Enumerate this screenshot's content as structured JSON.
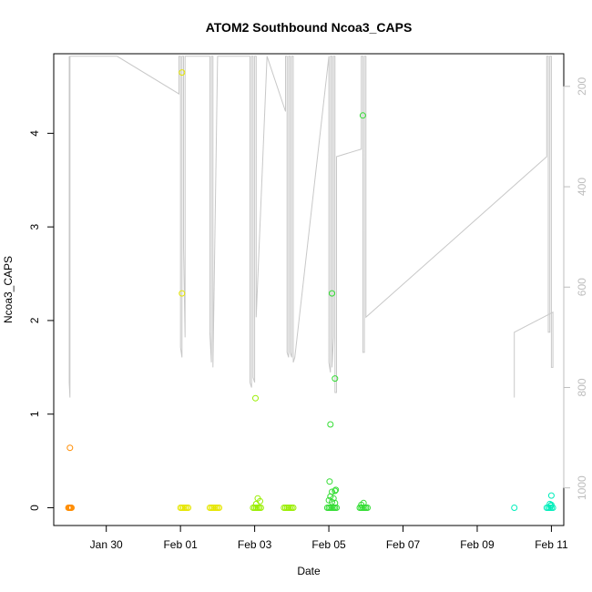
{
  "chart_data": {
    "type": "scatter",
    "title": "ATOM2 Southbound Ncoa3_CAPS",
    "xlabel": "Date",
    "ylabel": "Ncoa3_CAPS",
    "x_axis": {
      "type": "date",
      "domain": [
        "2025-01-28T14:00",
        "2025-02-11T08:00"
      ],
      "ticks": [
        {
          "value": "2025-01-30",
          "label": "Jan 30"
        },
        {
          "value": "2025-02-01",
          "label": "Feb 01"
        },
        {
          "value": "2025-02-03",
          "label": "Feb 03"
        },
        {
          "value": "2025-02-05",
          "label": "Feb 05"
        },
        {
          "value": "2025-02-07",
          "label": "Feb 07"
        },
        {
          "value": "2025-02-09",
          "label": "Feb 09"
        },
        {
          "value": "2025-02-11",
          "label": "Feb 11"
        }
      ]
    },
    "y_axis": {
      "range": [
        -0.19,
        4.85
      ],
      "ticks": [
        0,
        1,
        2,
        3,
        4
      ]
    },
    "y2_axis": {
      "range": [
        1075,
        135
      ],
      "reversed": true,
      "ticks": [
        200,
        400,
        600,
        800,
        1000
      ],
      "color": "#bdbdbd"
    },
    "grid": false,
    "legend": "none",
    "series": [
      {
        "color": "#ff8c00",
        "points": [
          {
            "x": "2025-01-29T00:30",
            "y": 0.64
          },
          {
            "x": "2025-01-28T23:30",
            "y": 0
          },
          {
            "x": "2025-01-29T00:00",
            "y": 0
          },
          {
            "x": "2025-01-29T00:30",
            "y": 0
          },
          {
            "x": "2025-01-29T01:00",
            "y": 0
          },
          {
            "x": "2025-01-29T01:30",
            "y": 0
          }
        ]
      },
      {
        "color": "#e6e600",
        "points": [
          {
            "x": "2025-02-01T01:00",
            "y": 4.65
          },
          {
            "x": "2025-02-01T01:00",
            "y": 2.29
          },
          {
            "x": "2025-02-01T00:00",
            "y": 0
          },
          {
            "x": "2025-02-01T01:00",
            "y": 0
          },
          {
            "x": "2025-02-01T02:00",
            "y": 0
          },
          {
            "x": "2025-02-01T03:00",
            "y": 0
          },
          {
            "x": "2025-02-01T04:00",
            "y": 0
          },
          {
            "x": "2025-02-01T05:00",
            "y": 0
          },
          {
            "x": "2025-02-01T19:00",
            "y": 0
          },
          {
            "x": "2025-02-01T20:00",
            "y": 0
          },
          {
            "x": "2025-02-01T21:00",
            "y": 0
          },
          {
            "x": "2025-02-01T22:00",
            "y": 0
          },
          {
            "x": "2025-02-01T23:00",
            "y": 0
          },
          {
            "x": "2025-02-02T00:00",
            "y": 0
          },
          {
            "x": "2025-02-02T01:00",
            "y": 0
          }
        ]
      },
      {
        "color": "#99ee00",
        "points": [
          {
            "x": "2025-02-03T00:30",
            "y": 1.17
          },
          {
            "x": "2025-02-03T02:00",
            "y": 0.1
          },
          {
            "x": "2025-02-03T03:30",
            "y": 0.07
          },
          {
            "x": "2025-02-03T01:00",
            "y": 0.04
          },
          {
            "x": "2025-02-02T23:00",
            "y": 0
          },
          {
            "x": "2025-02-03T00:00",
            "y": 0
          },
          {
            "x": "2025-02-03T01:00",
            "y": 0
          },
          {
            "x": "2025-02-03T02:00",
            "y": 0
          },
          {
            "x": "2025-02-03T03:00",
            "y": 0
          },
          {
            "x": "2025-02-03T04:00",
            "y": 0
          },
          {
            "x": "2025-02-03T19:00",
            "y": 0
          },
          {
            "x": "2025-02-03T20:00",
            "y": 0
          },
          {
            "x": "2025-02-03T21:00",
            "y": 0
          },
          {
            "x": "2025-02-03T22:00",
            "y": 0
          },
          {
            "x": "2025-02-03T23:00",
            "y": 0
          },
          {
            "x": "2025-02-04T00:00",
            "y": 0
          },
          {
            "x": "2025-02-04T01:00",
            "y": 0
          }
        ]
      },
      {
        "color": "#33dd33",
        "points": [
          {
            "x": "2025-02-05T22:00",
            "y": 4.19
          },
          {
            "x": "2025-02-05T02:00",
            "y": 2.29
          },
          {
            "x": "2025-02-05T04:00",
            "y": 1.38
          },
          {
            "x": "2025-02-05T01:00",
            "y": 0.89
          },
          {
            "x": "2025-02-05T00:30",
            "y": 0.28
          },
          {
            "x": "2025-02-05T02:00",
            "y": 0.17
          },
          {
            "x": "2025-02-05T04:00",
            "y": 0.18
          },
          {
            "x": "2025-02-05T04:30",
            "y": 0.19
          },
          {
            "x": "2025-02-05T01:00",
            "y": 0.12
          },
          {
            "x": "2025-02-05T03:00",
            "y": 0.1
          },
          {
            "x": "2025-02-05T00:00",
            "y": 0.08
          },
          {
            "x": "2025-02-05T02:00",
            "y": 0.06
          },
          {
            "x": "2025-02-05T04:00",
            "y": 0.05
          },
          {
            "x": "2025-02-05T22:30",
            "y": 0.05
          },
          {
            "x": "2025-02-05T21:00",
            "y": 0.03
          },
          {
            "x": "2025-02-04T23:00",
            "y": 0
          },
          {
            "x": "2025-02-05T00:00",
            "y": 0
          },
          {
            "x": "2025-02-05T01:00",
            "y": 0
          },
          {
            "x": "2025-02-05T02:00",
            "y": 0
          },
          {
            "x": "2025-02-05T03:00",
            "y": 0
          },
          {
            "x": "2025-02-05T04:00",
            "y": 0
          },
          {
            "x": "2025-02-05T05:00",
            "y": 0
          },
          {
            "x": "2025-02-05T20:00",
            "y": 0
          },
          {
            "x": "2025-02-05T21:00",
            "y": 0
          },
          {
            "x": "2025-02-05T22:00",
            "y": 0
          },
          {
            "x": "2025-02-05T23:00",
            "y": 0
          },
          {
            "x": "2025-02-06T00:00",
            "y": 0
          },
          {
            "x": "2025-02-06T01:00",
            "y": 0
          }
        ]
      },
      {
        "color": "#00eebb",
        "points": [
          {
            "x": "2025-02-11T00:00",
            "y": 0.13
          },
          {
            "x": "2025-02-10T23:00",
            "y": 0.04
          },
          {
            "x": "2025-02-11T00:00",
            "y": 0.03
          },
          {
            "x": "2025-02-10T23:30",
            "y": 0.02
          },
          {
            "x": "2025-02-10T00:00",
            "y": 0
          },
          {
            "x": "2025-02-10T21:00",
            "y": 0
          },
          {
            "x": "2025-02-10T22:00",
            "y": 0
          },
          {
            "x": "2025-02-10T23:00",
            "y": 0
          },
          {
            "x": "2025-02-11T00:00",
            "y": 0
          },
          {
            "x": "2025-02-11T01:00",
            "y": 0
          }
        ]
      }
    ],
    "trace": {
      "color": "#c8c8c8",
      "axis": "y2",
      "points": [
        {
          "x": "2025-01-29T00:00",
          "y": 140
        },
        {
          "x": "2025-01-29T00:00",
          "y": 790
        },
        {
          "x": "2025-01-29T00:30",
          "y": 820
        },
        {
          "x": "2025-01-29T00:30",
          "y": 140
        },
        {
          "x": "2025-01-29T03:00",
          "y": 140
        },
        {
          "x": "2025-01-30T07:00",
          "y": 140
        },
        {
          "x": "2025-01-31T23:00",
          "y": 215
        },
        {
          "x": "2025-01-31T23:00",
          "y": 140
        },
        {
          "x": "2025-02-01T00:00",
          "y": 140
        },
        {
          "x": "2025-02-01T00:00",
          "y": 720
        },
        {
          "x": "2025-02-01T01:00",
          "y": 740
        },
        {
          "x": "2025-02-01T01:00",
          "y": 140
        },
        {
          "x": "2025-02-01T02:00",
          "y": 140
        },
        {
          "x": "2025-02-01T02:00",
          "y": 520
        },
        {
          "x": "2025-02-01T03:00",
          "y": 700
        },
        {
          "x": "2025-02-01T03:00",
          "y": 140
        },
        {
          "x": "2025-02-01T19:00",
          "y": 140
        },
        {
          "x": "2025-02-01T19:00",
          "y": 690
        },
        {
          "x": "2025-02-01T20:00",
          "y": 750
        },
        {
          "x": "2025-02-01T20:00",
          "y": 140
        },
        {
          "x": "2025-02-01T21:00",
          "y": 140
        },
        {
          "x": "2025-02-01T21:00",
          "y": 760
        },
        {
          "x": "2025-02-02T00:00",
          "y": 140
        },
        {
          "x": "2025-02-02T19:00",
          "y": 140
        },
        {
          "x": "2025-02-02T21:00",
          "y": 140
        },
        {
          "x": "2025-02-02T21:00",
          "y": 790
        },
        {
          "x": "2025-02-02T22:00",
          "y": 800
        },
        {
          "x": "2025-02-02T22:00",
          "y": 140
        },
        {
          "x": "2025-02-02T23:00",
          "y": 140
        },
        {
          "x": "2025-02-02T23:00",
          "y": 780
        },
        {
          "x": "2025-02-03T00:00",
          "y": 790
        },
        {
          "x": "2025-02-03T00:00",
          "y": 140
        },
        {
          "x": "2025-02-03T01:00",
          "y": 140
        },
        {
          "x": "2025-02-03T01:00",
          "y": 660
        },
        {
          "x": "2025-02-03T08:00",
          "y": 140
        },
        {
          "x": "2025-02-03T20:00",
          "y": 250
        },
        {
          "x": "2025-02-03T20:00",
          "y": 140
        },
        {
          "x": "2025-02-03T21:00",
          "y": 140
        },
        {
          "x": "2025-02-03T21:00",
          "y": 730
        },
        {
          "x": "2025-02-03T22:00",
          "y": 740
        },
        {
          "x": "2025-02-03T22:00",
          "y": 140
        },
        {
          "x": "2025-02-03T23:00",
          "y": 140
        },
        {
          "x": "2025-02-03T23:00",
          "y": 730
        },
        {
          "x": "2025-02-04T00:00",
          "y": 740
        },
        {
          "x": "2025-02-04T00:00",
          "y": 140
        },
        {
          "x": "2025-02-04T01:00",
          "y": 140
        },
        {
          "x": "2025-02-04T01:00",
          "y": 750
        },
        {
          "x": "2025-02-04T02:00",
          "y": 740
        },
        {
          "x": "2025-02-05T00:00",
          "y": 140
        },
        {
          "x": "2025-02-05T00:00",
          "y": 750
        },
        {
          "x": "2025-02-05T01:00",
          "y": 770
        },
        {
          "x": "2025-02-05T01:00",
          "y": 140
        },
        {
          "x": "2025-02-05T02:00",
          "y": 140
        },
        {
          "x": "2025-02-05T02:00",
          "y": 760
        },
        {
          "x": "2025-02-05T03:00",
          "y": 700
        },
        {
          "x": "2025-02-05T03:00",
          "y": 140
        },
        {
          "x": "2025-02-05T04:00",
          "y": 140
        },
        {
          "x": "2025-02-05T04:00",
          "y": 810
        },
        {
          "x": "2025-02-05T05:00",
          "y": 810
        },
        {
          "x": "2025-02-05T05:00",
          "y": 340
        },
        {
          "x": "2025-02-05T21:00",
          "y": 325
        },
        {
          "x": "2025-02-05T21:00",
          "y": 140
        },
        {
          "x": "2025-02-05T22:00",
          "y": 140
        },
        {
          "x": "2025-02-05T22:00",
          "y": 730
        },
        {
          "x": "2025-02-05T23:00",
          "y": 730
        },
        {
          "x": "2025-02-05T23:00",
          "y": 140
        },
        {
          "x": "2025-02-06T00:00",
          "y": 140
        },
        {
          "x": "2025-02-06T00:00",
          "y": 660
        },
        {
          "x": "2025-02-10T21:00",
          "y": 340
        },
        {
          "x": "2025-02-10T21:00",
          "y": 140
        },
        {
          "x": "2025-02-10T22:00",
          "y": 140
        },
        {
          "x": "2025-02-10T22:00",
          "y": 690
        },
        {
          "x": "2025-02-10T23:00",
          "y": 690
        },
        {
          "x": "2025-02-10T23:00",
          "y": 140
        },
        {
          "x": "2025-02-11T00:00",
          "y": 140
        },
        {
          "x": "2025-02-11T00:00",
          "y": 760
        },
        {
          "x": "2025-02-11T01:00",
          "y": 760
        },
        {
          "x": "2025-02-11T01:00",
          "y": 650
        },
        {
          "x": "2025-02-10T00:00",
          "y": 690
        },
        {
          "x": "2025-02-10T00:00",
          "y": 820
        }
      ]
    }
  }
}
